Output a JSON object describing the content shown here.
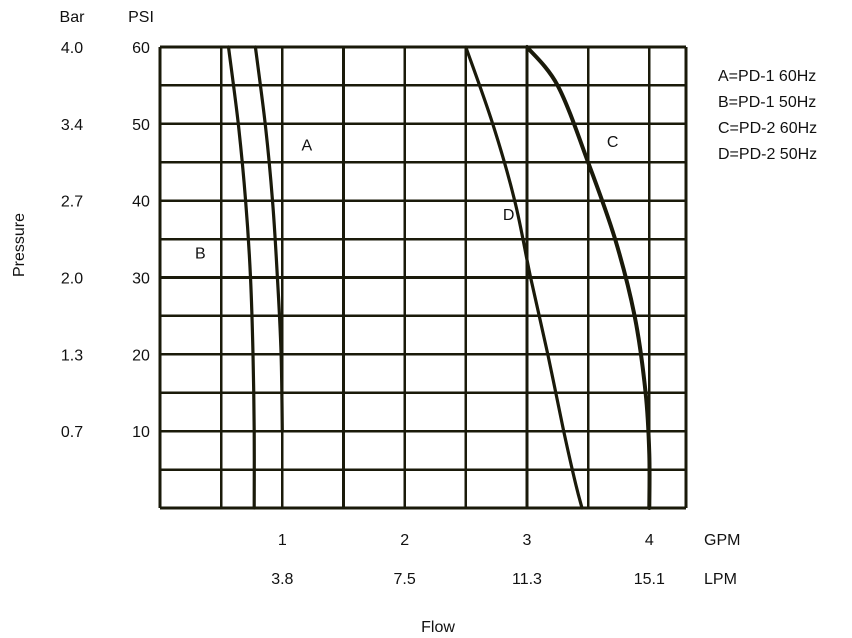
{
  "chart_data": {
    "type": "line",
    "xlabel": "Flow",
    "ylabel": "Pressure",
    "x_axis_primary": {
      "unit": "GPM",
      "ticks": [
        1,
        2,
        3,
        4
      ],
      "labels": [
        "1",
        "2",
        "3",
        "4"
      ]
    },
    "x_axis_secondary": {
      "unit": "LPM",
      "labels": [
        "3.8",
        "7.5",
        "11.3",
        "15.1"
      ]
    },
    "y_axis_primary": {
      "unit": "PSI",
      "ticks": [
        10,
        20,
        30,
        40,
        50,
        60
      ],
      "labels": [
        "10",
        "20",
        "30",
        "40",
        "50",
        "60"
      ]
    },
    "y_axis_secondary": {
      "unit": "Bar",
      "labels": [
        "0.7",
        "1.3",
        "2.0",
        "2.7",
        "3.4",
        "4.0"
      ]
    },
    "xlim": [
      0,
      4.3
    ],
    "ylim": [
      0,
      60
    ],
    "grid": true,
    "legend_position": "top-right",
    "legend": [
      "A=PD-1 60Hz",
      "B=PD-1 50Hz",
      "C=PD-2 60Hz",
      "D=PD-2 50Hz"
    ],
    "series": [
      {
        "name": "A",
        "x": [
          0.78,
          0.86,
          0.92,
          0.96,
          0.99,
          1.0,
          1.0
        ],
        "y": [
          60,
          50,
          40,
          30,
          20,
          10,
          20
        ]
      },
      {
        "name": "B",
        "x": [
          0.56,
          0.64,
          0.7,
          0.74,
          0.76,
          0.77,
          0.77
        ],
        "y": [
          60,
          50,
          40,
          30,
          20,
          10,
          0
        ]
      },
      {
        "name": "C",
        "x": [
          3.0,
          3.25,
          3.5,
          3.72,
          3.88,
          3.97,
          4.0,
          4.0
        ],
        "y": [
          60,
          55,
          45,
          35,
          25,
          15,
          7,
          0
        ]
      },
      {
        "name": "D",
        "x": [
          2.5,
          2.72,
          2.9,
          3.03,
          3.17,
          3.3,
          3.4,
          3.45
        ],
        "y": [
          60,
          50,
          40,
          30,
          20,
          10,
          3,
          0
        ]
      }
    ],
    "curve_labels": [
      {
        "text": "A",
        "x": 1.2,
        "y": 46.5
      },
      {
        "text": "B",
        "x": 0.33,
        "y": 32.5
      },
      {
        "text": "C",
        "x": 3.7,
        "y": 47
      },
      {
        "text": "D",
        "x": 2.85,
        "y": 37.5
      }
    ]
  }
}
